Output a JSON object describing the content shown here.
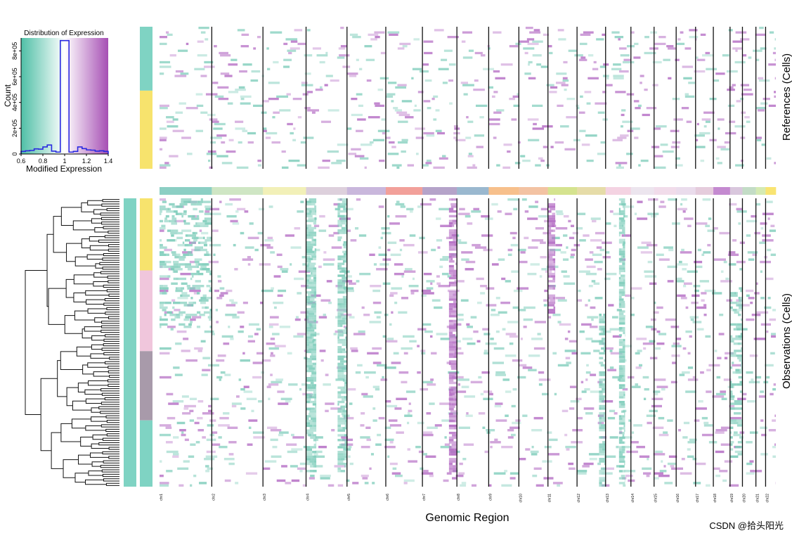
{
  "colors": {
    "low": "#7fcdbb",
    "high": "#b46cc4",
    "hist_line": "#2a2ae0",
    "ref_group_1": "#7fd3c3",
    "ref_group_2": "#f7e36d",
    "obs_group_main": "#7fd3c3",
    "obs_group_1": "#f7e36d",
    "obs_group_2": "#f0c6dc",
    "obs_group_3": "#a89aaa",
    "obs_group_4": "#7fd3c3"
  },
  "watermark": "CSDN @拾头阳光",
  "chart_data": [
    {
      "type": "histogram",
      "title": "Distribution of Expression",
      "xlabel": "Modified Expression",
      "ylabel": "Count",
      "xlim": [
        0.6,
        1.4
      ],
      "ylim": [
        0,
        900000
      ],
      "x_ticks": [
        "0.6",
        "0.8",
        "1",
        "1.2",
        "1.4"
      ],
      "y_ticks": [
        "0",
        "2e+05",
        "4e+05",
        "6e+05",
        "8e+05"
      ],
      "color_legend": "teal (low) to white (1) to purple (high)",
      "bins": [
        {
          "x0": 0.6,
          "x1": 0.64,
          "count": 20000
        },
        {
          "x0": 0.64,
          "x1": 0.68,
          "count": 25000
        },
        {
          "x0": 0.68,
          "x1": 0.72,
          "count": 28000
        },
        {
          "x0": 0.72,
          "x1": 0.76,
          "count": 40000
        },
        {
          "x0": 0.76,
          "x1": 0.8,
          "count": 38000
        },
        {
          "x0": 0.8,
          "x1": 0.84,
          "count": 55000
        },
        {
          "x0": 0.84,
          "x1": 0.88,
          "count": 70000
        },
        {
          "x0": 0.88,
          "x1": 0.92,
          "count": 22000
        },
        {
          "x0": 0.92,
          "x1": 0.96,
          "count": 15000
        },
        {
          "x0": 0.96,
          "x1": 1.04,
          "count": 880000
        },
        {
          "x0": 1.04,
          "x1": 1.08,
          "count": 15000
        },
        {
          "x0": 1.08,
          "x1": 1.12,
          "count": 20000
        },
        {
          "x0": 1.12,
          "x1": 1.16,
          "count": 55000
        },
        {
          "x0": 1.16,
          "x1": 1.2,
          "count": 42000
        },
        {
          "x0": 1.2,
          "x1": 1.24,
          "count": 32000
        },
        {
          "x0": 1.24,
          "x1": 1.28,
          "count": 30000
        },
        {
          "x0": 1.28,
          "x1": 1.32,
          "count": 22000
        },
        {
          "x0": 1.32,
          "x1": 1.36,
          "count": 25000
        },
        {
          "x0": 1.36,
          "x1": 1.4,
          "count": 20000
        }
      ]
    },
    {
      "type": "heatmap",
      "xlabel": "Genomic Region",
      "ylabel_top": "References (Cells)",
      "ylabel_bottom": "Observations (Cells)",
      "chromosomes": [
        "chr1",
        "chr2",
        "chr3",
        "chr4",
        "chr5",
        "chr6",
        "chr7",
        "chr8",
        "chr9",
        "chr10",
        "chr11",
        "chr12",
        "chr13",
        "chr14",
        "chr15",
        "chr16",
        "chr17",
        "chr18",
        "chr19",
        "chr20",
        "chr21",
        "chr22"
      ],
      "chromosome_weights": [
        97,
        95,
        80,
        76,
        72,
        68,
        64,
        59,
        56,
        54,
        54,
        53,
        47,
        43,
        41,
        36,
        33,
        31,
        23,
        25,
        18,
        19
      ],
      "chromosome_colors": [
        "#8ccfc4",
        "#cfe6c4",
        "#f2f0b8",
        "#ddd0dc",
        "#c9b7dc",
        "#f2a09a",
        "#b5a3c9",
        "#9ab8cf",
        "#f7c08c",
        "#f3c3a3",
        "#d5e38f",
        "#e6dca8",
        "#f4d3e2",
        "#ece5ee",
        "#f1dcea",
        "#eadcec",
        "#e5ccdc",
        "#c48ad0",
        "#d9c7dd",
        "#c3dcc6",
        "#d5eab3",
        "#f9e472"
      ],
      "reference_groups": [
        {
          "size": 0.45,
          "color_key": "ref_group_1"
        },
        {
          "size": 0.55,
          "color_key": "ref_group_2"
        }
      ],
      "observation_groups": [
        {
          "size": 0.25,
          "color_key": "obs_group_1"
        },
        {
          "size": 0.28,
          "color_key": "obs_group_2"
        },
        {
          "size": 0.24,
          "color_key": "obs_group_3"
        },
        {
          "size": 0.23,
          "color_key": "obs_group_4"
        }
      ],
      "blocks": [
        {
          "chr": "chr1",
          "from": 0.0,
          "to": 1.0,
          "dir": "low",
          "density": 0.35,
          "span": [
            0.0,
            0.45
          ]
        },
        {
          "chr": "chr4",
          "from": 0.0,
          "to": 0.25,
          "dir": "low",
          "density": 0.8,
          "span": [
            0.0,
            0.95
          ]
        },
        {
          "chr": "chr4",
          "from": 0.77,
          "to": 1.0,
          "dir": "low",
          "density": 0.7,
          "span": [
            0.0,
            0.95
          ]
        },
        {
          "chr": "chr7",
          "from": 0.77,
          "to": 1.0,
          "dir": "high",
          "density": 0.8,
          "span": [
            0.0,
            0.95
          ]
        },
        {
          "chr": "chr11",
          "from": 0.0,
          "to": 0.25,
          "dir": "high",
          "density": 0.8,
          "span": [
            0.0,
            0.4
          ]
        },
        {
          "chr": "chr12",
          "from": 0.77,
          "to": 1.0,
          "dir": "low",
          "density": 0.75,
          "span": [
            0.4,
            1.0
          ]
        },
        {
          "chr": "chr13",
          "from": 0.53,
          "to": 0.77,
          "dir": "low",
          "density": 0.8,
          "span": [
            0.0,
            1.0
          ]
        },
        {
          "chr": "chr19",
          "from": 0.0,
          "to": 1.0,
          "dir": "low",
          "density": 0.4,
          "span": [
            0.3,
            0.9
          ]
        }
      ]
    }
  ]
}
